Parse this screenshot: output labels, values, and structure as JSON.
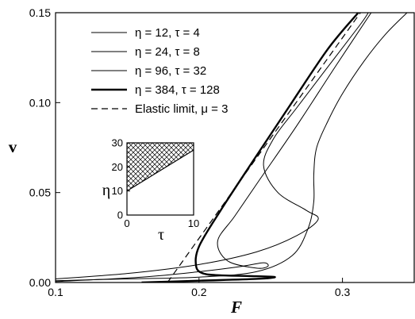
{
  "chart_data": {
    "type": "line",
    "xlabel": "F",
    "ylabel": "v",
    "xlim": [
      0.1,
      0.35
    ],
    "ylim": [
      0.0,
      0.15
    ],
    "x_ticks": [
      0.1,
      0.2,
      0.3
    ],
    "x_tick_labels": [
      "0.1",
      "0.2",
      "0.3"
    ],
    "y_ticks": [
      0.0,
      0.05,
      0.1,
      0.15
    ],
    "y_tick_labels": [
      "0.00",
      "0.05",
      "0.10",
      "0.15"
    ],
    "legend_position": "top-center",
    "series": [
      {
        "name": "η = 12, τ = 4",
        "style": "thin-solid",
        "points": [
          [
            0.1,
            0.001
          ],
          [
            0.15,
            0.002
          ],
          [
            0.2,
            0.003
          ],
          [
            0.24,
            0.006
          ],
          [
            0.265,
            0.015
          ],
          [
            0.276,
            0.03
          ],
          [
            0.28,
            0.045
          ],
          [
            0.28,
            0.06
          ],
          [
            0.282,
            0.075
          ],
          [
            0.29,
            0.09
          ],
          [
            0.3,
            0.105
          ],
          [
            0.315,
            0.123
          ],
          [
            0.33,
            0.138
          ],
          [
            0.345,
            0.15
          ]
        ]
      },
      {
        "name": "η = 24, τ = 8",
        "style": "thin-solid",
        "points": [
          [
            0.1,
            0.002
          ],
          [
            0.15,
            0.005
          ],
          [
            0.2,
            0.01
          ],
          [
            0.24,
            0.017
          ],
          [
            0.268,
            0.026
          ],
          [
            0.283,
            0.035
          ],
          [
            0.275,
            0.04
          ],
          [
            0.255,
            0.05
          ],
          [
            0.245,
            0.065
          ],
          [
            0.252,
            0.08
          ],
          [
            0.268,
            0.097
          ],
          [
            0.288,
            0.118
          ],
          [
            0.312,
            0.143
          ],
          [
            0.318,
            0.15
          ]
        ]
      },
      {
        "name": "η = 96, τ = 32",
        "style": "thin-solid",
        "points": [
          [
            0.1,
            0.0005
          ],
          [
            0.16,
            0.003
          ],
          [
            0.2,
            0.006
          ],
          [
            0.23,
            0.009
          ],
          [
            0.245,
            0.011
          ],
          [
            0.248,
            0.009
          ],
          [
            0.24,
            0.008
          ],
          [
            0.22,
            0.012
          ],
          [
            0.213,
            0.023
          ],
          [
            0.225,
            0.037
          ],
          [
            0.243,
            0.058
          ],
          [
            0.268,
            0.087
          ],
          [
            0.295,
            0.12
          ],
          [
            0.32,
            0.15
          ]
        ]
      },
      {
        "name": "η = 384, τ = 128",
        "style": "thick-solid",
        "points": [
          [
            0.16,
            0.0
          ],
          [
            0.2,
            0.001
          ],
          [
            0.24,
            0.002
          ],
          [
            0.253,
            0.003
          ],
          [
            0.24,
            0.0035
          ],
          [
            0.215,
            0.004
          ],
          [
            0.203,
            0.005
          ],
          [
            0.198,
            0.009
          ],
          [
            0.2,
            0.02
          ],
          [
            0.215,
            0.04
          ],
          [
            0.238,
            0.068
          ],
          [
            0.263,
            0.098
          ],
          [
            0.29,
            0.13
          ],
          [
            0.311,
            0.15
          ]
        ]
      },
      {
        "name": "Elastic limit, μ = 3",
        "style": "dashed",
        "points": [
          [
            0.178,
            0.0
          ],
          [
            0.3125,
            0.15
          ]
        ]
      }
    ],
    "inset": {
      "xlabel": "τ",
      "ylabel": "η",
      "xlim": [
        0,
        10
      ],
      "ylim": [
        0,
        30
      ],
      "x_tick_labels": [
        "0",
        "10"
      ],
      "y_tick_labels": [
        "0",
        "10",
        "20",
        "30"
      ],
      "boundary": [
        [
          0,
          10
        ],
        [
          10,
          27
        ]
      ],
      "shaded_region": "above boundary"
    }
  }
}
